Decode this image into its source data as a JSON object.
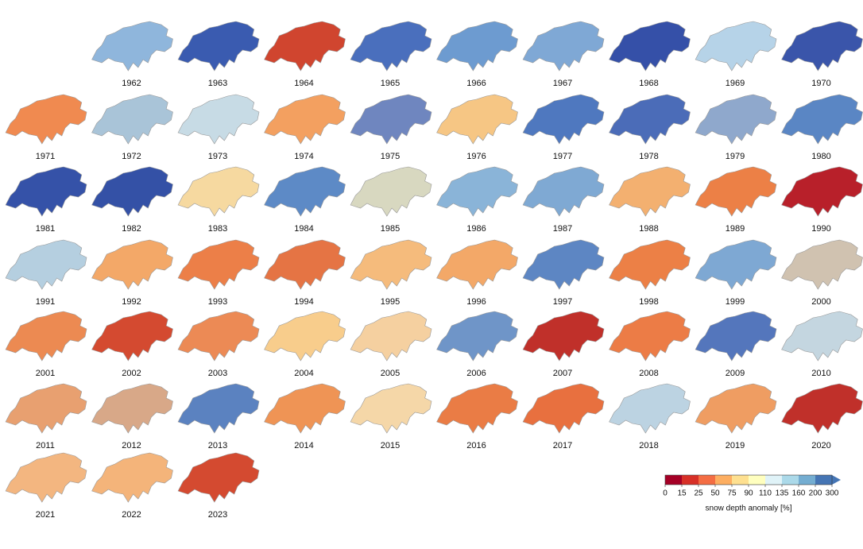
{
  "maps": [
    {
      "year": "1962",
      "color": "#8fb6dc"
    },
    {
      "year": "1963",
      "color": "#3a5bb0"
    },
    {
      "year": "1964",
      "color": "#d0452f"
    },
    {
      "year": "1965",
      "color": "#4a6fbd"
    },
    {
      "year": "1966",
      "color": "#6d9bd0"
    },
    {
      "year": "1967",
      "color": "#7fa8d5"
    },
    {
      "year": "1968",
      "color": "#3550a8"
    },
    {
      "year": "1969",
      "color": "#b6d3e8"
    },
    {
      "year": "1970",
      "color": "#3a55aa"
    },
    {
      "year": "1971",
      "color": "#f08a50"
    },
    {
      "year": "1972",
      "color": "#a9c4d8"
    },
    {
      "year": "1973",
      "color": "#c7dbe5"
    },
    {
      "year": "1974",
      "color": "#f3a060"
    },
    {
      "year": "1975",
      "color": "#6f86bf"
    },
    {
      "year": "1976",
      "color": "#f6c684"
    },
    {
      "year": "1977",
      "color": "#4f78bf"
    },
    {
      "year": "1978",
      "color": "#4b6cb8"
    },
    {
      "year": "1979",
      "color": "#8fa8cc"
    },
    {
      "year": "1980",
      "color": "#5a86c4"
    },
    {
      "year": "1981",
      "color": "#3552a8"
    },
    {
      "year": "1982",
      "color": "#3451a6"
    },
    {
      "year": "1983",
      "color": "#f6d9a0"
    },
    {
      "year": "1984",
      "color": "#5d8ac6"
    },
    {
      "year": "1985",
      "color": "#d8d8c0"
    },
    {
      "year": "1986",
      "color": "#8ab4d8"
    },
    {
      "year": "1987",
      "color": "#7fa9d3"
    },
    {
      "year": "1988",
      "color": "#f3b070"
    },
    {
      "year": "1989",
      "color": "#ec8046"
    },
    {
      "year": "1990",
      "color": "#b8202a"
    },
    {
      "year": "1991",
      "color": "#b5cfe0"
    },
    {
      "year": "1992",
      "color": "#f3a868"
    },
    {
      "year": "1993",
      "color": "#ec7f48"
    },
    {
      "year": "1994",
      "color": "#e57444"
    },
    {
      "year": "1995",
      "color": "#f5bb7c"
    },
    {
      "year": "1996",
      "color": "#f3a868"
    },
    {
      "year": "1997",
      "color": "#5d86c3"
    },
    {
      "year": "1998",
      "color": "#ec8046"
    },
    {
      "year": "1999",
      "color": "#7ea8d3"
    },
    {
      "year": "2000",
      "color": "#d0c2b0"
    },
    {
      "year": "2001",
      "color": "#ec8a52"
    },
    {
      "year": "2002",
      "color": "#d44a30"
    },
    {
      "year": "2003",
      "color": "#ec8a55"
    },
    {
      "year": "2004",
      "color": "#f8cd8c"
    },
    {
      "year": "2005",
      "color": "#f5d0a0"
    },
    {
      "year": "2006",
      "color": "#6f95c8"
    },
    {
      "year": "2007",
      "color": "#c0302a"
    },
    {
      "year": "2008",
      "color": "#ec7c46"
    },
    {
      "year": "2009",
      "color": "#5476bc"
    },
    {
      "year": "2010",
      "color": "#c4d6e0"
    },
    {
      "year": "2011",
      "color": "#e8a070"
    },
    {
      "year": "2012",
      "color": "#d8a888"
    },
    {
      "year": "2013",
      "color": "#5b82c0"
    },
    {
      "year": "2014",
      "color": "#ef9455"
    },
    {
      "year": "2015",
      "color": "#f5d7a8"
    },
    {
      "year": "2016",
      "color": "#ea7c45"
    },
    {
      "year": "2017",
      "color": "#e8703f"
    },
    {
      "year": "2018",
      "color": "#bcd3e2"
    },
    {
      "year": "2019",
      "color": "#ef9d62"
    },
    {
      "year": "2020",
      "color": "#c0302a"
    },
    {
      "year": "2021",
      "color": "#f3b680"
    },
    {
      "year": "2022",
      "color": "#f4b47a"
    },
    {
      "year": "2023",
      "color": "#d44a30"
    }
  ],
  "colorbar": {
    "ticks": [
      0,
      15,
      25,
      50,
      75,
      90,
      110,
      135,
      160,
      200,
      300
    ],
    "colors": [
      "#a50026",
      "#d73027",
      "#f46d43",
      "#fdae61",
      "#fee090",
      "#ffffbf",
      "#e0f3f8",
      "#abd9e9",
      "#74add1",
      "#4575b4"
    ],
    "label": "snow depth anomaly [%]"
  }
}
